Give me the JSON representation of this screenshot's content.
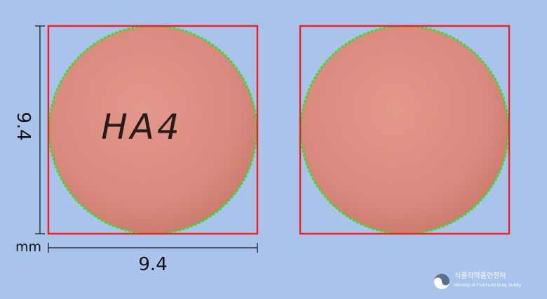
{
  "dimensions": {
    "width_label": "9.4",
    "height_label": "9.4",
    "unit": "mm"
  },
  "front": {
    "imprint": "HA4"
  },
  "logo": {
    "korean": "식품의약품안전처",
    "english": "Ministry of Food and Drug Safety"
  },
  "colors": {
    "background": "#a9c3ea",
    "pill": "#d9877a",
    "bbox": "#e8262a",
    "contour": "#3ddc2a"
  }
}
